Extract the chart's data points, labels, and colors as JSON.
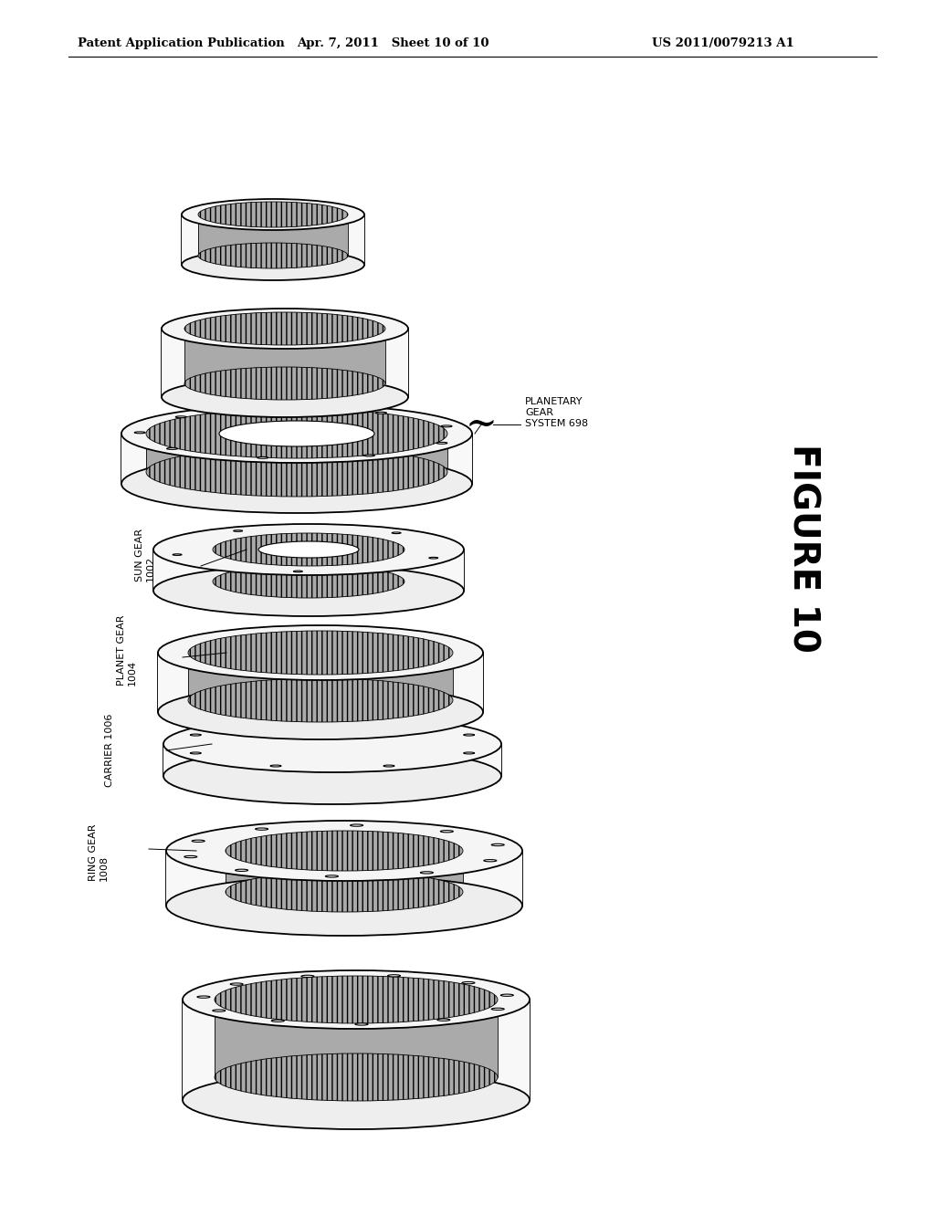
{
  "background_color": "#ffffff",
  "header_left": "Patent Application Publication",
  "header_mid": "Apr. 7, 2011   Sheet 10 of 10",
  "header_right": "US 2011/0079213 A1",
  "figure_label": "FIGURE 10",
  "planetary_label": "PLANETARY\nGEAR\nSYSTEM 698"
}
